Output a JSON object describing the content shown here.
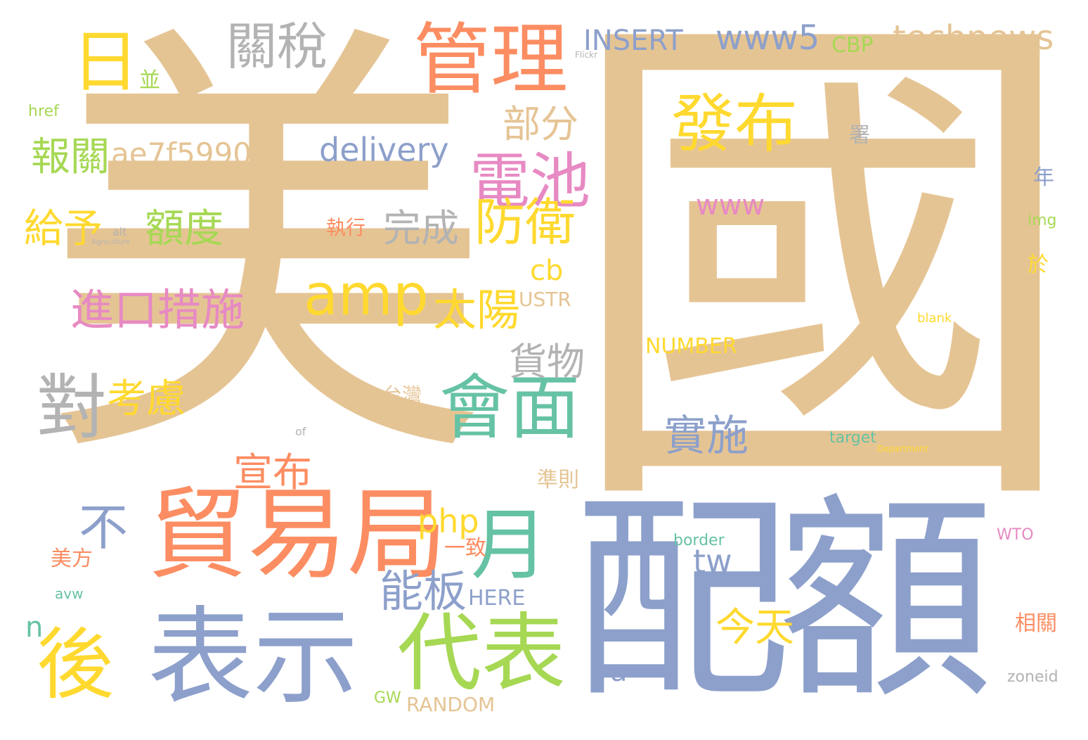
{
  "palette": {
    "tan": "#e5c494",
    "blue": "#8da0cb",
    "orange": "#fc8d62",
    "green": "#66c2a5",
    "lime": "#a6d854",
    "yellow": "#ffd92f",
    "pink": "#e78ac3",
    "gray": "#b3b3b3"
  },
  "words": [
    "美國",
    "配額",
    "表示",
    "貿易局",
    "代表",
    "管理",
    "會面",
    "電池",
    "發布",
    "關稅",
    "日",
    "後",
    "對",
    "月",
    "amp",
    "防衛",
    "technews",
    "www5",
    "INSERT",
    "進口措施",
    "太陽",
    "能板",
    "不",
    "實施",
    "今天",
    "宣布",
    "考慮",
    "給予",
    "額度",
    "報關",
    "部分",
    "完成",
    "貨物",
    "delivery",
    "ae7f5990",
    "php",
    "www",
    "tw",
    "cb",
    "CBP",
    "a",
    "n",
    "NUMBER",
    "RANDOM",
    "HERE",
    "USTR",
    "一致",
    "美方",
    "準則",
    "相關",
    "執行",
    "台灣",
    "並",
    "年",
    "署",
    "於",
    "img",
    "href",
    "blank",
    "target",
    "border",
    "zoneid",
    "WTO",
    "GW",
    "avw",
    "alt",
    "of",
    "Flickr",
    "Agriculture",
    "Department"
  ]
}
